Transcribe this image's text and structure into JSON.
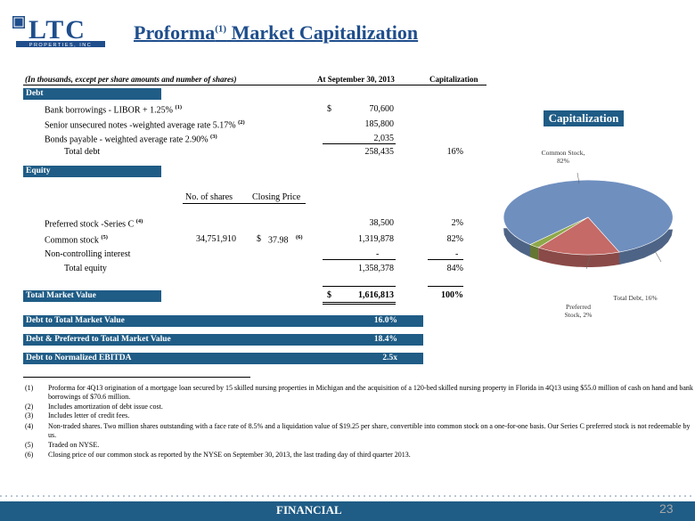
{
  "logo": {
    "letters": "LTC",
    "subtitle": "PROPERTIES, INC"
  },
  "title": {
    "main": "Proforma",
    "sup": "(1)",
    "rest": " Market Capitalization"
  },
  "header": {
    "units": "(In thousands, except per share amounts and number of shares)",
    "at": "At September 30, 2013",
    "cap": "Capitalization"
  },
  "debt": {
    "section": "Debt",
    "rows": [
      {
        "label": "Bank borrowings - LIBOR + 1.25%",
        "sup": "(1)",
        "dollar": "$",
        "value": "70,600",
        "pct": ""
      },
      {
        "label": "Senior unsecured notes -weighted average rate 5.17%",
        "sup": "(2)",
        "dollar": "",
        "value": "185,800",
        "pct": ""
      },
      {
        "label": "Bonds payable  - weighted average rate 2.90%",
        "sup": "(3)",
        "dollar": "",
        "value": "2,035",
        "pct": ""
      }
    ],
    "total_label": "Total debt",
    "total_value": "258,435",
    "total_pct": "16%"
  },
  "equity": {
    "section": "Equity",
    "col_shares": "No. of shares",
    "col_price": "Closing Price",
    "pref": {
      "label": "Preferred stock -Series C",
      "sup": "(4)",
      "value": "38,500",
      "pct": "2%"
    },
    "common": {
      "label": "Common stock",
      "sup": "(5)",
      "shares": "34,751,910",
      "dollar": "$",
      "price": "37.98",
      "price_sup": "(6)",
      "value": "1,319,878",
      "pct": "82%"
    },
    "nci": {
      "label": "Non-controlling interest",
      "value": "-",
      "pct": "-"
    },
    "total_label": "Total equity",
    "total_value": "1,358,378",
    "total_pct": "84%"
  },
  "market": {
    "label": "Total Market Value",
    "dollar": "$",
    "value": "1,616,813",
    "pct": "100%"
  },
  "ratios": [
    {
      "label": "Debt to Total Market Value",
      "value": "16.0%"
    },
    {
      "label": "Debt & Preferred to Total Market Value",
      "value": "18.4%"
    },
    {
      "label": "Debt to Normalized EBITDA",
      "value": "2.5x"
    }
  ],
  "notes": [
    {
      "n": "(1)",
      "text": "Proforma for 4Q13 origination of a mortgage loan secured by 15 skilled nursing properties in Michigan and the acquisition of a 120-bed skilled nursing property in Florida in 4Q13 using $55.0 million of cash on hand and bank borrowings of $70.6 million."
    },
    {
      "n": "(2)",
      "text": "Includes amortization of debt issue cost."
    },
    {
      "n": "(3)",
      "text": "Includes letter of credit fees."
    },
    {
      "n": "(4)",
      "text": "Non-traded shares.  Two million shares outstanding with a face rate of 8.5% and a liquidation value of $19.25 per share, convertible into common stock on a one-for-one basis.  Our Series C preferred stock is not redeemable by us."
    },
    {
      "n": "(5)",
      "text": "Traded on NYSE."
    },
    {
      "n": "(6)",
      "text": "Closing price of our common stock as reported by the NYSE on September 30, 2013, the last trading day of third quarter 2013."
    }
  ],
  "chart_data": {
    "type": "pie",
    "title": "Capitalization",
    "labels": [
      "Common Stock, 82%",
      "Total Debt, 16%",
      "Preferred Stock, 2%"
    ],
    "categories": [
      "Common Stock",
      "Total Debt",
      "Preferred Stock"
    ],
    "values": [
      82,
      16,
      2
    ],
    "colors": [
      "#6f8fbf",
      "#c56a66",
      "#8fa84a"
    ]
  },
  "footer": {
    "label": "FINANCIAL",
    "page": "23"
  }
}
